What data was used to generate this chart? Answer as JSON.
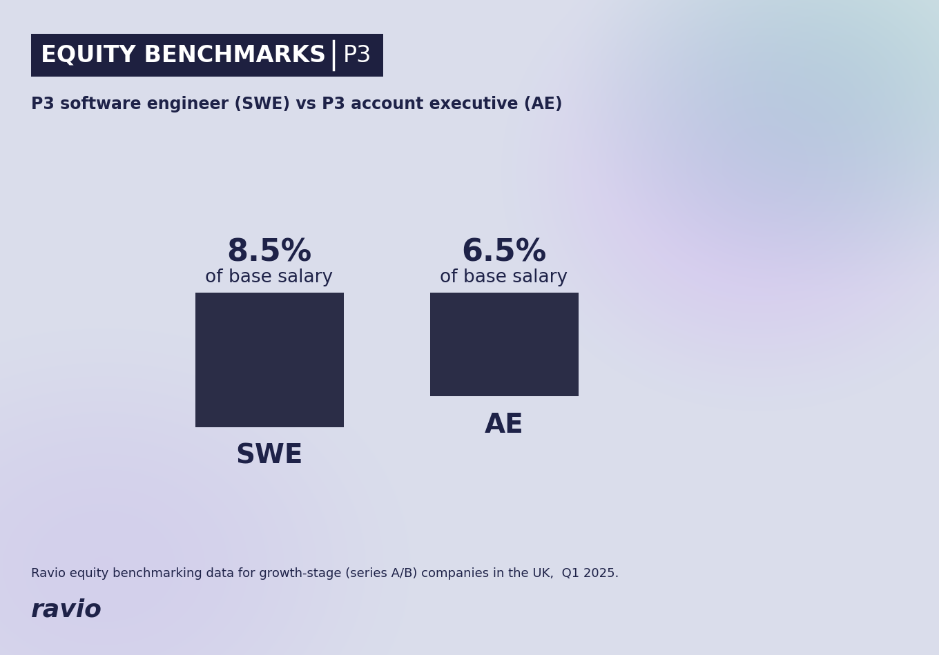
{
  "title_box_text": "EQUITY BENCHMARKS",
  "title_box_suffix": "P3",
  "subtitle": "P3 software engineer (SWE) vs P3 account executive (AE)",
  "bar_color": "#2b2d47",
  "bar1_value": 8.5,
  "bar2_value": 6.5,
  "bar1_label": "SWE",
  "bar2_label": "AE",
  "bar1_pct": "8.5%",
  "bar2_pct": "6.5%",
  "pct_sub": "of base salary",
  "footnote": "Ravio equity benchmarking data for growth-stage (series A/B) companies in the UK,  Q1 2025.",
  "logo_text": "ravio",
  "text_color": "#1e2248",
  "title_bg": "#1e2040",
  "bg_base": "#cfd6e8",
  "bg_purple_top_right": "#c8b8e0",
  "bg_green_top_right": "#a8d4c0",
  "bg_purple_bottom": "#c0b4e0"
}
